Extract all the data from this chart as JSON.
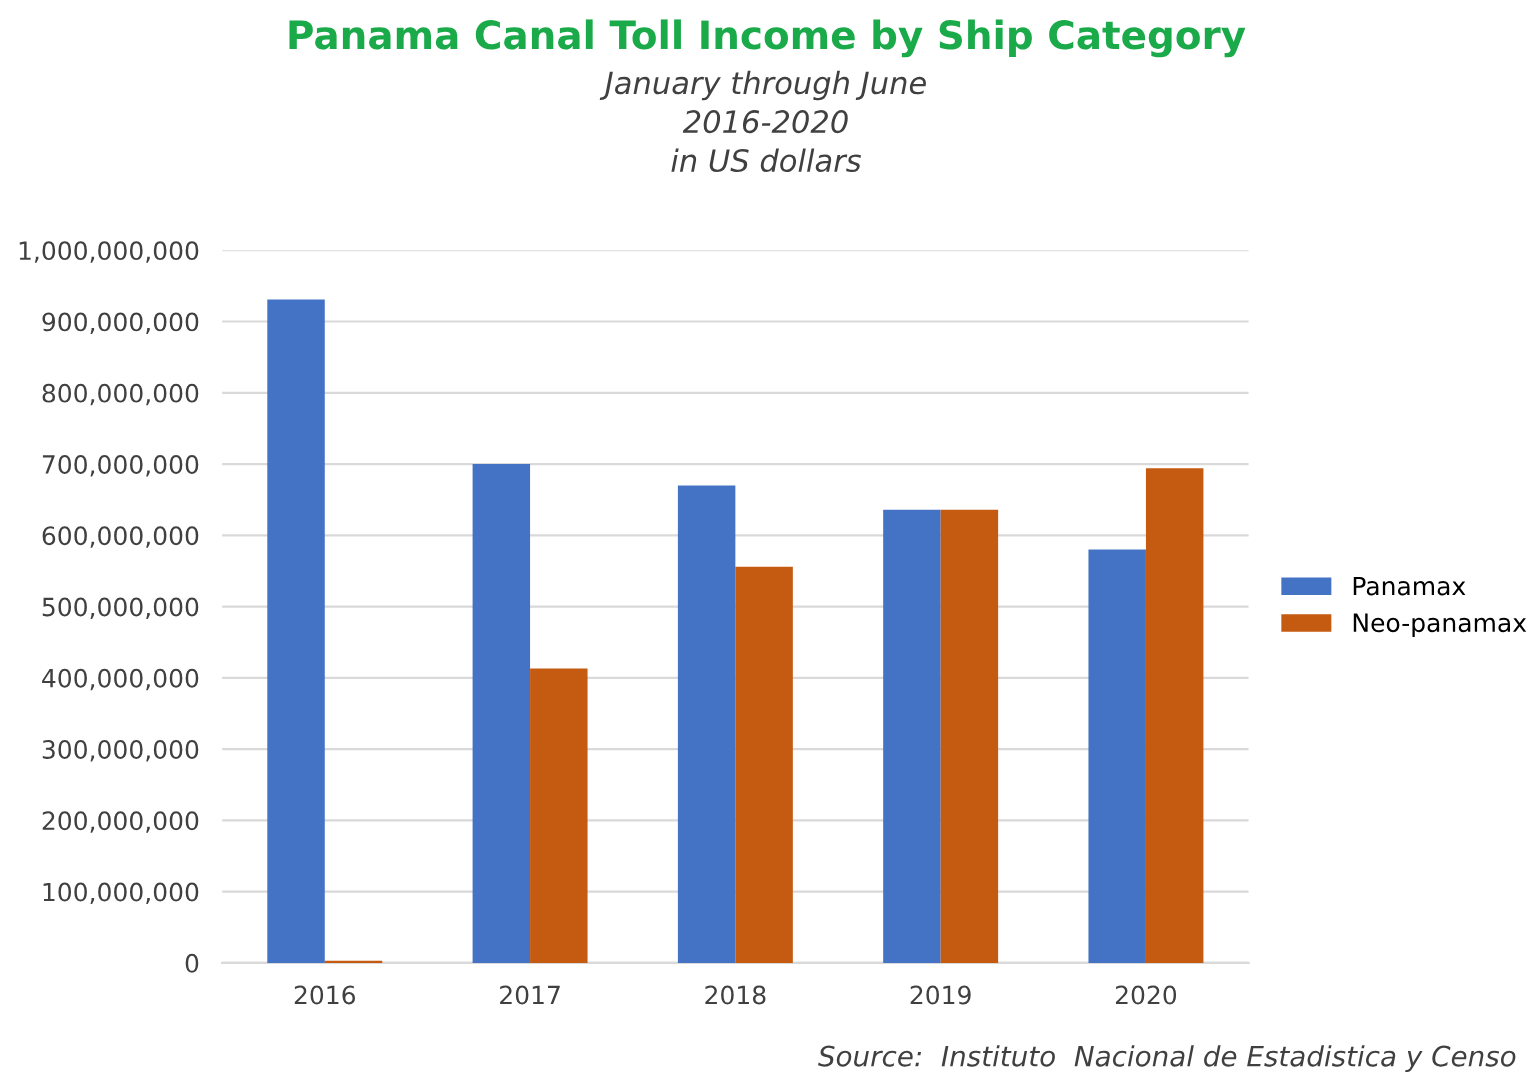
{
  "chart_data": {
    "type": "bar",
    "title": "Panama Canal Toll Income by Ship Category",
    "subtitle": "January through June\n2016-2020\nin US dollars",
    "categories": [
      "2016",
      "2017",
      "2018",
      "2019",
      "2020"
    ],
    "series": [
      {
        "name": "Panamax",
        "color": "#4472c4",
        "values": [
          931000000,
          700000000,
          670000000,
          636000000,
          580000000
        ]
      },
      {
        "name": "Neo-panamax",
        "color": "#c55a11",
        "values": [
          3000000,
          413000000,
          556000000,
          636000000,
          694000000
        ]
      }
    ],
    "ylim": [
      0,
      1000000000
    ],
    "yticks": [
      {
        "value": 0,
        "label": "0"
      },
      {
        "value": 100000000,
        "label": "100,000,000"
      },
      {
        "value": 200000000,
        "label": "200,000,000"
      },
      {
        "value": 300000000,
        "label": "300,000,000"
      },
      {
        "value": 400000000,
        "label": "400,000,000"
      },
      {
        "value": 500000000,
        "label": "500,000,000"
      },
      {
        "value": 600000000,
        "label": "600,000,000"
      },
      {
        "value": 700000000,
        "label": "700,000,000"
      },
      {
        "value": 800000000,
        "label": "800,000,000"
      },
      {
        "value": 900000000,
        "label": "900,000,000"
      },
      {
        "value": 1000000000,
        "label": "1,000,000,000"
      }
    ],
    "grid": "y",
    "legend": "right",
    "annotations": [
      "Source:  Instituto  Nacional de Estadistica y Censo"
    ]
  }
}
